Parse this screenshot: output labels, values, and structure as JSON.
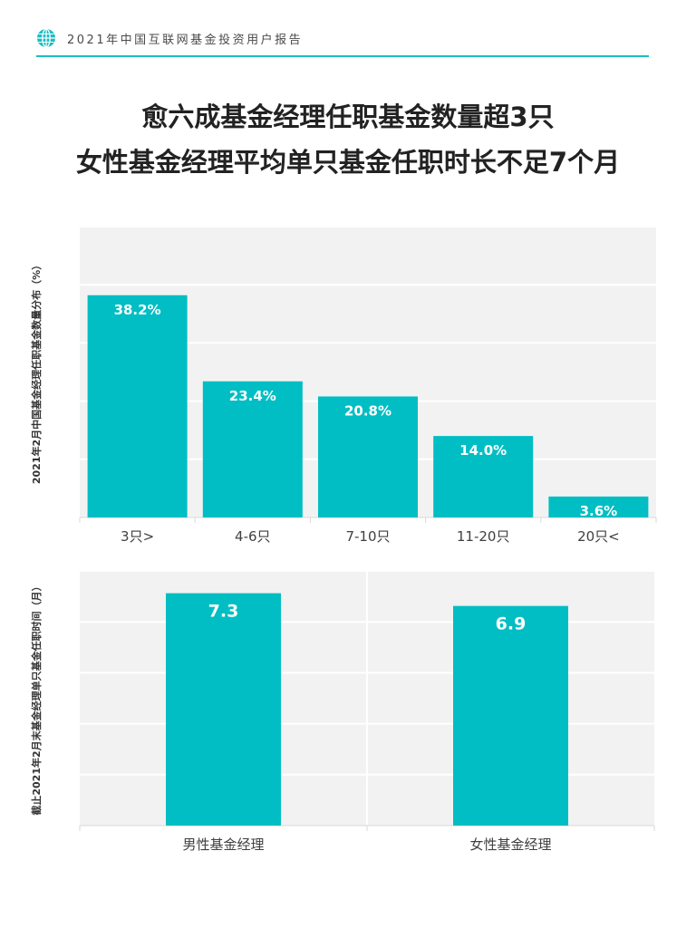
{
  "header": {
    "report_title": "2021年中国互联网基金投资用户报告",
    "icon": "globe-icon",
    "accent_color": "#19bec3"
  },
  "headline": {
    "line1": "愈六成基金经理任职基金数量超3只",
    "line2": "女性基金经理平均单只基金任职时长不足7个月"
  },
  "chart_data": [
    {
      "type": "bar",
      "ylabel": "2021年2月中国基金经理任职基金数量分布（%）",
      "categories": [
        "3只>",
        "4-6只",
        "7-10只",
        "11-20只",
        "20只<"
      ],
      "values": [
        38.2,
        23.4,
        20.8,
        14.0,
        3.6
      ],
      "value_labels": [
        "38.2%",
        "23.4%",
        "20.8%",
        "14.0%",
        "3.6%"
      ],
      "ylim": [
        0,
        50
      ],
      "grid": true,
      "bar_color": "#00bec3",
      "plot_background": "#f2f2f2"
    },
    {
      "type": "bar",
      "ylabel": "截止2021年2月末基金经理单只基金任职时间（月）",
      "categories": [
        "男性基金经理",
        "女性基金经理"
      ],
      "values": [
        7.3,
        6.9
      ],
      "value_labels": [
        "7.3",
        "6.9"
      ],
      "ylim": [
        0,
        8
      ],
      "grid": true,
      "bar_color": "#00bec3",
      "plot_background": "#f2f2f2"
    }
  ]
}
